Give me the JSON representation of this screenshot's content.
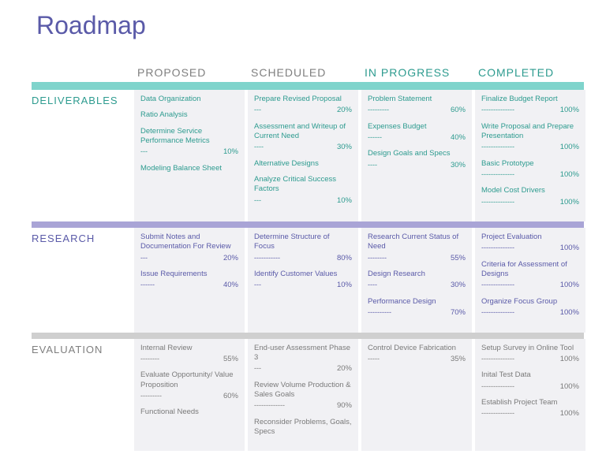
{
  "title": "Roadmap",
  "title_color": "#5a5aa8",
  "columns": [
    {
      "label": "PROPOSED",
      "header_color": "#7f7f7f"
    },
    {
      "label": "SCHEDULED",
      "header_color": "#7f7f7f"
    },
    {
      "label": "IN PROGRESS",
      "header_color": "#2d9b8f"
    },
    {
      "label": "COMPLETED",
      "header_color": "#2d9b8f"
    }
  ],
  "sections": [
    {
      "label": "DELIVERABLES",
      "label_color": "#2d9b8f",
      "bar_color": "#7fd4cc",
      "item_color": "#2d9b8f",
      "cells": [
        [
          {
            "label": "Data Organization",
            "pct": null
          },
          {
            "label": "Ratio Analysis",
            "pct": null
          },
          {
            "label": "Determine Service Performance Metrics",
            "pct": "10%"
          },
          {
            "label": "Modeling Balance Sheet",
            "pct": null
          }
        ],
        [
          {
            "label": "Prepare Revised Proposal",
            "pct": "20%"
          },
          {
            "label": "Assessment and Writeup of Current Need",
            "pct": "30%"
          },
          {
            "label": "Alternative Designs",
            "pct": null
          },
          {
            "label": "Analyze Critical Success Factors",
            "pct": "10%"
          }
        ],
        [
          {
            "label": "Problem Statement",
            "pct": "60%"
          },
          {
            "label": "Expenses Budget",
            "pct": "40%"
          },
          {
            "label": "Design Goals and Specs",
            "pct": "30%"
          }
        ],
        [
          {
            "label": "Finalize Budget Report",
            "pct": "100%"
          },
          {
            "label": "Write Proposal and Prepare Presentation",
            "pct": "100%"
          },
          {
            "label": "Basic Prototype",
            "pct": "100%"
          },
          {
            "label": "Model Cost Drivers",
            "pct": "100%"
          }
        ]
      ]
    },
    {
      "label": "RESEARCH",
      "label_color": "#5a5aa8",
      "bar_color": "#a9a4d6",
      "item_color": "#5a5aa8",
      "cells": [
        [
          {
            "label": "Submit Notes and Documentation For Review",
            "pct": "20%"
          },
          {
            "label": "Issue Requirements",
            "pct": "40%"
          }
        ],
        [
          {
            "label": "Determine Structure of Focus",
            "pct": "80%"
          },
          {
            "label": "Identify Customer Values",
            "pct": "10%"
          }
        ],
        [
          {
            "label": "Research Current Status of Need",
            "pct": "55%"
          },
          {
            "label": "Design Research",
            "pct": "30%"
          },
          {
            "label": "Performance Design",
            "pct": "70%"
          }
        ],
        [
          {
            "label": "Project Evaluation",
            "pct": "100%"
          },
          {
            "label": "Criteria for Assessment of Designs",
            "pct": "100%"
          },
          {
            "label": "Organize Focus Group",
            "pct": "100%"
          }
        ]
      ]
    },
    {
      "label": "EVALUATION",
      "label_color": "#7f7f7f",
      "bar_color": "#cfcfcf",
      "item_color": "#7a7a7a",
      "cells": [
        [
          {
            "label": "Internal Review",
            "pct": "55%"
          },
          {
            "label": "Evaluate Opportunity/ Value Proposition",
            "pct": "60%"
          },
          {
            "label": "Functional Needs",
            "pct": null
          }
        ],
        [
          {
            "label": "End-user Assessment Phase 3",
            "pct": "20%"
          },
          {
            "label": "Review Volume Production & Sales Goals",
            "pct": "90%"
          },
          {
            "label": "Reconsider Problems, Goals, Specs",
            "pct": null
          }
        ],
        [
          {
            "label": "Control Device Fabrication",
            "pct": "35%"
          }
        ],
        [
          {
            "label": "Setup Survey in Online Tool",
            "pct": "100%"
          },
          {
            "label": "Inital Test Data",
            "pct": "100%"
          },
          {
            "label": "Establish Project Team",
            "pct": "100%"
          }
        ]
      ]
    }
  ]
}
